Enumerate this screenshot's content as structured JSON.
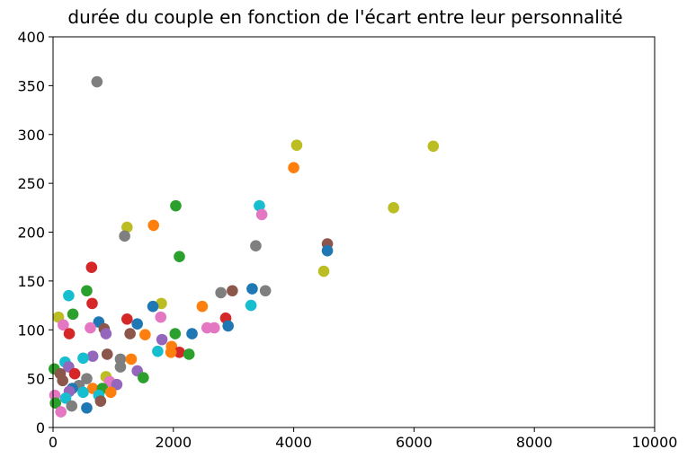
{
  "chart_data": {
    "type": "scatter",
    "title": "durée du couple en fonction de l'écart entre leur personnalité",
    "xlabel": "",
    "ylabel": "",
    "xlim": [
      0,
      10000
    ],
    "ylim": [
      0,
      400
    ],
    "x_ticks": [
      0,
      2000,
      4000,
      6000,
      8000,
      10000
    ],
    "y_ticks": [
      0,
      50,
      100,
      150,
      200,
      250,
      300,
      350,
      400
    ],
    "x_tick_labels": [
      "0",
      "2000",
      "4000",
      "6000",
      "8000",
      "10000"
    ],
    "y_tick_labels": [
      "0",
      "50",
      "100",
      "150",
      "200",
      "250",
      "300",
      "350",
      "400"
    ],
    "grid": false,
    "palette": [
      "#1f77b4",
      "#ff7f0e",
      "#2ca02c",
      "#d62728",
      "#9467bd",
      "#8c564b",
      "#e377c2",
      "#7f7f7f",
      "#bcbd22",
      "#17becf"
    ],
    "points": [
      {
        "x": 730,
        "y": 354,
        "color": "#7f7f7f"
      },
      {
        "x": 4050,
        "y": 289,
        "color": "#bcbd22"
      },
      {
        "x": 6320,
        "y": 288,
        "color": "#bcbd22"
      },
      {
        "x": 4000,
        "y": 266,
        "color": "#ff7f0e"
      },
      {
        "x": 2040,
        "y": 227,
        "color": "#2ca02c"
      },
      {
        "x": 3430,
        "y": 227,
        "color": "#17becf"
      },
      {
        "x": 5660,
        "y": 225,
        "color": "#bcbd22"
      },
      {
        "x": 3470,
        "y": 218,
        "color": "#e377c2"
      },
      {
        "x": 1670,
        "y": 207,
        "color": "#ff7f0e"
      },
      {
        "x": 1230,
        "y": 205,
        "color": "#bcbd22"
      },
      {
        "x": 1190,
        "y": 196,
        "color": "#7f7f7f"
      },
      {
        "x": 4560,
        "y": 188,
        "color": "#8c564b"
      },
      {
        "x": 3370,
        "y": 186,
        "color": "#7f7f7f"
      },
      {
        "x": 4560,
        "y": 181,
        "color": "#1f77b4"
      },
      {
        "x": 2100,
        "y": 175,
        "color": "#2ca02c"
      },
      {
        "x": 640,
        "y": 164,
        "color": "#d62728"
      },
      {
        "x": 4500,
        "y": 160,
        "color": "#bcbd22"
      },
      {
        "x": 3310,
        "y": 142,
        "color": "#1f77b4"
      },
      {
        "x": 2980,
        "y": 140,
        "color": "#8c564b"
      },
      {
        "x": 3530,
        "y": 140,
        "color": "#7f7f7f"
      },
      {
        "x": 560,
        "y": 140,
        "color": "#2ca02c"
      },
      {
        "x": 2790,
        "y": 138,
        "color": "#7f7f7f"
      },
      {
        "x": 260,
        "y": 135,
        "color": "#17becf"
      },
      {
        "x": 650,
        "y": 127,
        "color": "#d62728"
      },
      {
        "x": 1800,
        "y": 127,
        "color": "#bcbd22"
      },
      {
        "x": 3290,
        "y": 125,
        "color": "#17becf"
      },
      {
        "x": 1660,
        "y": 124,
        "color": "#1f77b4"
      },
      {
        "x": 2480,
        "y": 124,
        "color": "#ff7f0e"
      },
      {
        "x": 330,
        "y": 116,
        "color": "#2ca02c"
      },
      {
        "x": 1790,
        "y": 113,
        "color": "#e377c2"
      },
      {
        "x": 90,
        "y": 113,
        "color": "#bcbd22"
      },
      {
        "x": 2870,
        "y": 112,
        "color": "#d62728"
      },
      {
        "x": 1230,
        "y": 111,
        "color": "#d62728"
      },
      {
        "x": 760,
        "y": 108,
        "color": "#1f77b4"
      },
      {
        "x": 1400,
        "y": 106,
        "color": "#1f77b4"
      },
      {
        "x": 170,
        "y": 105,
        "color": "#e377c2"
      },
      {
        "x": 2910,
        "y": 104,
        "color": "#1f77b4"
      },
      {
        "x": 620,
        "y": 102,
        "color": "#e377c2"
      },
      {
        "x": 2560,
        "y": 102,
        "color": "#e377c2"
      },
      {
        "x": 2680,
        "y": 102,
        "color": "#e377c2"
      },
      {
        "x": 850,
        "y": 101,
        "color": "#8c564b"
      },
      {
        "x": 270,
        "y": 96,
        "color": "#d62728"
      },
      {
        "x": 880,
        "y": 96,
        "color": "#9467bd"
      },
      {
        "x": 1280,
        "y": 96,
        "color": "#8c564b"
      },
      {
        "x": 2310,
        "y": 96,
        "color": "#1f77b4"
      },
      {
        "x": 2030,
        "y": 96,
        "color": "#2ca02c"
      },
      {
        "x": 1530,
        "y": 95,
        "color": "#ff7f0e"
      },
      {
        "x": 1810,
        "y": 90,
        "color": "#9467bd"
      },
      {
        "x": 1970,
        "y": 83,
        "color": "#ff7f0e"
      },
      {
        "x": 1740,
        "y": 78,
        "color": "#17becf"
      },
      {
        "x": 2100,
        "y": 77,
        "color": "#d62728"
      },
      {
        "x": 1960,
        "y": 77,
        "color": "#ff7f0e"
      },
      {
        "x": 2260,
        "y": 75,
        "color": "#2ca02c"
      },
      {
        "x": 900,
        "y": 75,
        "color": "#8c564b"
      },
      {
        "x": 660,
        "y": 73,
        "color": "#9467bd"
      },
      {
        "x": 500,
        "y": 71,
        "color": "#17becf"
      },
      {
        "x": 1120,
        "y": 70,
        "color": "#7f7f7f"
      },
      {
        "x": 1300,
        "y": 70,
        "color": "#ff7f0e"
      },
      {
        "x": 200,
        "y": 67,
        "color": "#17becf"
      },
      {
        "x": 1120,
        "y": 62,
        "color": "#7f7f7f"
      },
      {
        "x": 260,
        "y": 62,
        "color": "#9467bd"
      },
      {
        "x": 20,
        "y": 60,
        "color": "#2ca02c"
      },
      {
        "x": 1400,
        "y": 58,
        "color": "#9467bd"
      },
      {
        "x": 120,
        "y": 55,
        "color": "#8c564b"
      },
      {
        "x": 360,
        "y": 55,
        "color": "#d62728"
      },
      {
        "x": 880,
        "y": 52,
        "color": "#bcbd22"
      },
      {
        "x": 1500,
        "y": 51,
        "color": "#2ca02c"
      },
      {
        "x": 560,
        "y": 50,
        "color": "#7f7f7f"
      },
      {
        "x": 160,
        "y": 48,
        "color": "#8c564b"
      },
      {
        "x": 940,
        "y": 47,
        "color": "#e377c2"
      },
      {
        "x": 1060,
        "y": 44,
        "color": "#9467bd"
      },
      {
        "x": 430,
        "y": 43,
        "color": "#7f7f7f"
      },
      {
        "x": 660,
        "y": 40,
        "color": "#ff7f0e"
      },
      {
        "x": 320,
        "y": 40,
        "color": "#1f77b4"
      },
      {
        "x": 820,
        "y": 40,
        "color": "#2ca02c"
      },
      {
        "x": 270,
        "y": 37,
        "color": "#9467bd"
      },
      {
        "x": 960,
        "y": 36,
        "color": "#ff7f0e"
      },
      {
        "x": 500,
        "y": 36,
        "color": "#17becf"
      },
      {
        "x": 30,
        "y": 33,
        "color": "#e377c2"
      },
      {
        "x": 760,
        "y": 33,
        "color": "#17becf"
      },
      {
        "x": 210,
        "y": 30,
        "color": "#17becf"
      },
      {
        "x": 790,
        "y": 27,
        "color": "#8c564b"
      },
      {
        "x": 40,
        "y": 25,
        "color": "#2ca02c"
      },
      {
        "x": 310,
        "y": 22,
        "color": "#7f7f7f"
      },
      {
        "x": 560,
        "y": 20,
        "color": "#1f77b4"
      },
      {
        "x": 130,
        "y": 16,
        "color": "#e377c2"
      }
    ]
  }
}
